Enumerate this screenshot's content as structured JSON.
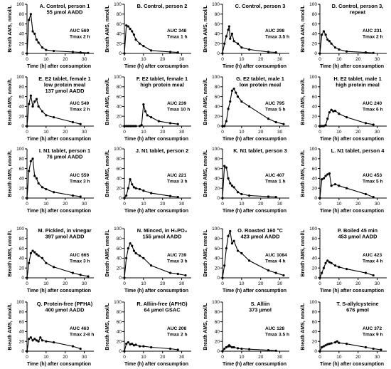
{
  "axis_labels": {
    "y": "Breath AMS, nmol/L",
    "x": "Time (h) after consumption"
  },
  "chart_data": [
    {
      "type": "line",
      "title": [
        "A. Control, person 1",
        "55 µmol AADD"
      ],
      "auc": [
        "AUC 569",
        "Tmax 2 h"
      ],
      "x": [
        0,
        1,
        2,
        3,
        4,
        5,
        6,
        8,
        10,
        14,
        24,
        28,
        32
      ],
      "y": [
        0,
        68,
        80,
        45,
        40,
        28,
        22,
        12,
        7,
        5,
        3,
        2,
        1
      ],
      "xlim": [
        0,
        35
      ],
      "ylim": [
        0,
        100
      ],
      "xticks": [
        0,
        10,
        20,
        30
      ],
      "yticks": [
        0,
        20,
        40,
        60,
        80,
        100
      ]
    },
    {
      "type": "line",
      "title": [
        "B. Control, person 2"
      ],
      "auc": [
        "AUC 348",
        "Tmax 1 h"
      ],
      "x": [
        0,
        1,
        2,
        3,
        4,
        5,
        6,
        8,
        10,
        14,
        24,
        28
      ],
      "y": [
        0,
        57,
        55,
        50,
        45,
        38,
        28,
        20,
        15,
        6,
        3,
        2
      ],
      "xlim": [
        0,
        35
      ],
      "ylim": [
        0,
        100
      ],
      "xticks": [
        0,
        10,
        20,
        30
      ],
      "yticks": [
        0,
        20,
        40,
        60,
        80,
        100
      ]
    },
    {
      "type": "line",
      "title": [
        "C. Control, person 3"
      ],
      "auc": [
        "AUC 298",
        "Tmax 3.5 h"
      ],
      "x": [
        0,
        1,
        2,
        3,
        3.5,
        4,
        5,
        6,
        8,
        10,
        14,
        24,
        28
      ],
      "y": [
        0,
        20,
        35,
        48,
        55,
        30,
        40,
        25,
        20,
        12,
        8,
        3,
        2
      ],
      "xlim": [
        0,
        35
      ],
      "ylim": [
        0,
        100
      ],
      "xticks": [
        0,
        10,
        20,
        30
      ],
      "yticks": [
        0,
        20,
        40,
        60,
        80,
        100
      ]
    },
    {
      "type": "line",
      "title": [
        "D. Control, person 3,",
        "repeat"
      ],
      "auc": [
        "AUC 231",
        "Tmax 2 h"
      ],
      "x": [
        0,
        1,
        2,
        3,
        4,
        5,
        6,
        8,
        10,
        14,
        24,
        28
      ],
      "y": [
        0,
        38,
        45,
        38,
        28,
        25,
        20,
        12,
        8,
        4,
        2,
        1
      ],
      "xlim": [
        0,
        35
      ],
      "ylim": [
        0,
        100
      ],
      "xticks": [
        0,
        10,
        20,
        30
      ],
      "yticks": [
        0,
        20,
        40,
        60,
        80,
        100
      ]
    },
    {
      "type": "line",
      "title": [
        "E. E2 tablet, female 1",
        "low protein meal",
        "137 µmol AADD"
      ],
      "auc": [
        "AUC 549",
        "Tmax 2 h"
      ],
      "x": [
        0,
        1,
        2,
        3,
        4,
        5,
        6,
        8,
        10,
        14,
        24,
        28
      ],
      "y": [
        0,
        45,
        62,
        40,
        50,
        55,
        40,
        30,
        22,
        18,
        8,
        4
      ],
      "xlim": [
        0,
        35
      ],
      "ylim": [
        0,
        100
      ],
      "xticks": [
        0,
        10,
        20,
        30
      ],
      "yticks": [
        0,
        20,
        40,
        60,
        80,
        100
      ]
    },
    {
      "type": "line",
      "title": [
        "F. E2 tablet, female 1",
        "high protein meal"
      ],
      "auc": [
        "AUC 239",
        "Tmax 10 h"
      ],
      "x": [
        0,
        1,
        2,
        3,
        4,
        5,
        6,
        8,
        9,
        10,
        11,
        12,
        14,
        18,
        24,
        28
      ],
      "y": [
        0,
        0,
        0,
        0,
        0,
        0,
        0,
        0,
        2,
        44,
        30,
        22,
        18,
        10,
        6,
        4
      ],
      "xlim": [
        0,
        35
      ],
      "ylim": [
        0,
        100
      ],
      "xticks": [
        0,
        10,
        20,
        30
      ],
      "yticks": [
        0,
        20,
        40,
        60,
        80,
        100
      ]
    },
    {
      "type": "line",
      "title": [
        "G. E2 tablet, male 1",
        "low protein meal"
      ],
      "auc": [
        "AUC 795",
        "Tmax 5 h"
      ],
      "x": [
        0,
        1,
        2,
        3,
        4,
        5,
        6,
        7,
        8,
        10,
        14,
        24,
        28,
        32
      ],
      "y": [
        0,
        0,
        10,
        35,
        50,
        72,
        76,
        68,
        60,
        50,
        40,
        15,
        8,
        4
      ],
      "xlim": [
        0,
        35
      ],
      "ylim": [
        0,
        100
      ],
      "xticks": [
        0,
        10,
        20,
        30
      ],
      "yticks": [
        0,
        20,
        40,
        60,
        80,
        100
      ]
    },
    {
      "type": "line",
      "title": [
        "H. E2 tablet, male 1",
        "high protein meal"
      ],
      "auc": [
        "AUC 240",
        "Tmax 6 h"
      ],
      "x": [
        0,
        1,
        2,
        3,
        4,
        5,
        6,
        7,
        8,
        10,
        14,
        24,
        28
      ],
      "y": [
        0,
        0,
        0,
        2,
        15,
        28,
        33,
        30,
        31,
        25,
        18,
        6,
        3
      ],
      "xlim": [
        0,
        35
      ],
      "ylim": [
        0,
        100
      ],
      "xticks": [
        0,
        10,
        20,
        30
      ],
      "yticks": [
        0,
        20,
        40,
        60,
        80,
        100
      ]
    },
    {
      "type": "line",
      "title": [
        "I. N1 tablet, person 1",
        "76 µmol AADD"
      ],
      "auc": [
        "AUC 559",
        "Tmax 3 h"
      ],
      "x": [
        0,
        1,
        2,
        3,
        4,
        5,
        6,
        8,
        10,
        14,
        24,
        28
      ],
      "y": [
        0,
        55,
        75,
        80,
        45,
        40,
        30,
        22,
        18,
        12,
        5,
        3
      ],
      "xlim": [
        0,
        35
      ],
      "ylim": [
        0,
        100
      ],
      "xticks": [
        0,
        10,
        20,
        30
      ],
      "yticks": [
        0,
        20,
        40,
        60,
        80,
        100
      ]
    },
    {
      "type": "line",
      "title": [
        "J. N1 tablet, person 2"
      ],
      "auc": [
        "AUC 221",
        "Tmax 3 h"
      ],
      "x": [
        0,
        1,
        2,
        3,
        4,
        5,
        6,
        8,
        10,
        14,
        24,
        28
      ],
      "y": [
        0,
        5,
        20,
        38,
        28,
        22,
        20,
        18,
        15,
        10,
        4,
        2
      ],
      "xlim": [
        0,
        35
      ],
      "ylim": [
        0,
        100
      ],
      "xticks": [
        0,
        10,
        20,
        30
      ],
      "yticks": [
        0,
        20,
        40,
        60,
        80,
        100
      ]
    },
    {
      "type": "line",
      "title": [
        "K. N1 tablet, person 3"
      ],
      "auc": [
        "AUC 407",
        "Tmax 1 h"
      ],
      "x": [
        0,
        1,
        2,
        3,
        4,
        5,
        6,
        8,
        10,
        14,
        24,
        28
      ],
      "y": [
        0,
        65,
        62,
        40,
        30,
        25,
        22,
        12,
        8,
        5,
        3,
        2
      ],
      "xlim": [
        0,
        35
      ],
      "ylim": [
        0,
        100
      ],
      "xticks": [
        0,
        10,
        20,
        30
      ],
      "yticks": [
        0,
        20,
        40,
        60,
        80,
        100
      ]
    },
    {
      "type": "line",
      "title": [
        "L. N1 tablet, person 4"
      ],
      "auc": [
        "AUC 453",
        "Tmax 5 h"
      ],
      "x": [
        0,
        1,
        2,
        3,
        4,
        5,
        6,
        8,
        10,
        14,
        24,
        28
      ],
      "y": [
        0,
        38,
        40,
        45,
        48,
        50,
        25,
        28,
        25,
        20,
        8,
        2
      ],
      "xlim": [
        0,
        35
      ],
      "ylim": [
        0,
        100
      ],
      "xticks": [
        0,
        10,
        20,
        30
      ],
      "yticks": [
        0,
        20,
        40,
        60,
        80,
        100
      ]
    },
    {
      "type": "line",
      "title": [
        "M. Pickled, in vinegar",
        "397 µmol AADD"
      ],
      "auc": [
        "AUC 665",
        "Tmax 3 h"
      ],
      "x": [
        0,
        1,
        2,
        3,
        4,
        5,
        6,
        8,
        10,
        14,
        24,
        28,
        32
      ],
      "y": [
        0,
        30,
        50,
        55,
        52,
        48,
        45,
        40,
        30,
        22,
        10,
        6,
        3
      ],
      "xlim": [
        0,
        35
      ],
      "ylim": [
        0,
        100
      ],
      "xticks": [
        0,
        10,
        20,
        30
      ],
      "yticks": [
        0,
        20,
        40,
        60,
        80,
        100
      ]
    },
    {
      "type": "line",
      "title": [
        "N. Minced, in H₃PO₄",
        "155 µmol AADD"
      ],
      "auc": [
        "AUC 739",
        "Tmax 3 h"
      ],
      "x": [
        0,
        1,
        2,
        3,
        4,
        5,
        6,
        8,
        10,
        14,
        24,
        28,
        32
      ],
      "y": [
        0,
        40,
        60,
        70,
        65,
        55,
        50,
        45,
        40,
        25,
        10,
        8,
        5
      ],
      "xlim": [
        0,
        35
      ],
      "ylim": [
        0,
        100
      ],
      "xticks": [
        0,
        10,
        20,
        30
      ],
      "yticks": [
        0,
        20,
        40,
        60,
        80,
        100
      ]
    },
    {
      "type": "line",
      "title": [
        "O. Roasted 160 °C",
        "423 µmol AADD"
      ],
      "auc": [
        "AUC 1084",
        "Tmax 4 h"
      ],
      "x": [
        0,
        1,
        2,
        3,
        4,
        5,
        6,
        8,
        10,
        14,
        24,
        28,
        32
      ],
      "y": [
        0,
        25,
        60,
        85,
        95,
        70,
        75,
        55,
        50,
        35,
        15,
        10,
        5
      ],
      "xlim": [
        0,
        35
      ],
      "ylim": [
        0,
        100
      ],
      "xticks": [
        0,
        10,
        20,
        30
      ],
      "yticks": [
        0,
        20,
        40,
        60,
        80,
        100
      ]
    },
    {
      "type": "line",
      "title": [
        "P. Boiled 45 min",
        "453 µmol AADD"
      ],
      "auc": [
        "AUC 423",
        "Tmax 4 h"
      ],
      "x": [
        0,
        1,
        2,
        3,
        4,
        5,
        6,
        8,
        10,
        14,
        24,
        28
      ],
      "y": [
        0,
        10,
        20,
        30,
        35,
        32,
        30,
        25,
        22,
        18,
        10,
        5
      ],
      "xlim": [
        0,
        35
      ],
      "ylim": [
        0,
        100
      ],
      "xticks": [
        0,
        10,
        20,
        30
      ],
      "yticks": [
        0,
        20,
        40,
        60,
        80,
        100
      ]
    },
    {
      "type": "line",
      "title": [
        "Q. Protein-free (PFHA)",
        "400 µmol AADD"
      ],
      "auc": [
        "AUC 463",
        "Tmax 2-8 h"
      ],
      "x": [
        0,
        1,
        2,
        3,
        4,
        5,
        6,
        7,
        8,
        10,
        14,
        24,
        28
      ],
      "y": [
        0,
        25,
        28,
        22,
        25,
        22,
        20,
        28,
        22,
        20,
        18,
        10,
        5
      ],
      "xlim": [
        0,
        35
      ],
      "ylim": [
        0,
        100
      ],
      "xticks": [
        0,
        10,
        20,
        30
      ],
      "yticks": [
        0,
        20,
        40,
        60,
        80,
        100
      ]
    },
    {
      "type": "line",
      "title": [
        "R. Alliin-free (AFHG)",
        "64 µmol GSAC"
      ],
      "auc": [
        "AUC 208",
        "Tmax 2 h"
      ],
      "x": [
        0,
        1,
        2,
        3,
        4,
        5,
        6,
        8,
        10,
        14,
        24,
        28
      ],
      "y": [
        0,
        15,
        18,
        14,
        15,
        12,
        13,
        10,
        10,
        8,
        5,
        3
      ],
      "xlim": [
        0,
        35
      ],
      "ylim": [
        0,
        100
      ],
      "xticks": [
        0,
        10,
        20,
        30
      ],
      "yticks": [
        0,
        20,
        40,
        60,
        80,
        100
      ]
    },
    {
      "type": "line",
      "title": [
        "S. Alliin",
        "373 µmol"
      ],
      "auc": [
        "AUC 128",
        "Tmax 3.5 h"
      ],
      "x": [
        0,
        1,
        2,
        3,
        3.5,
        4,
        5,
        6,
        8,
        10,
        14,
        24,
        28
      ],
      "y": [
        0,
        5,
        8,
        10,
        12,
        10,
        8,
        8,
        6,
        5,
        4,
        2,
        1
      ],
      "xlim": [
        0,
        35
      ],
      "ylim": [
        0,
        100
      ],
      "xticks": [
        0,
        10,
        20,
        30
      ],
      "yticks": [
        0,
        20,
        40,
        60,
        80,
        100
      ]
    },
    {
      "type": "line",
      "title": [
        "T. S-allylcysteine",
        "676 µmol"
      ],
      "auc": [
        "AUC 372",
        "Tmax 9 h"
      ],
      "x": [
        0,
        1,
        2,
        3,
        4,
        5,
        6,
        8,
        9,
        10,
        14,
        24,
        28,
        32
      ],
      "y": [
        0,
        8,
        10,
        12,
        14,
        15,
        16,
        18,
        20,
        17,
        15,
        8,
        5,
        3
      ],
      "xlim": [
        0,
        35
      ],
      "ylim": [
        0,
        100
      ],
      "xticks": [
        0,
        10,
        20,
        30
      ],
      "yticks": [
        0,
        20,
        40,
        60,
        80,
        100
      ]
    }
  ]
}
